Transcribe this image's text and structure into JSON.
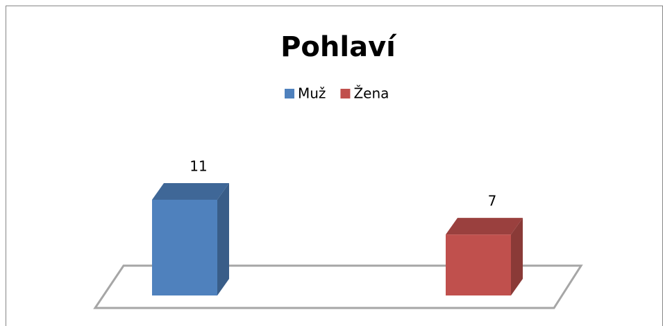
{
  "chart_data": {
    "type": "bar3d",
    "title": "Pohlaví",
    "categories": [
      null
    ],
    "series": [
      {
        "name": "Muž",
        "color": "#4f81bd",
        "values": [
          11
        ]
      },
      {
        "name": "Žena",
        "color": "#c0504d",
        "values": [
          7
        ]
      }
    ],
    "legend": "top"
  }
}
